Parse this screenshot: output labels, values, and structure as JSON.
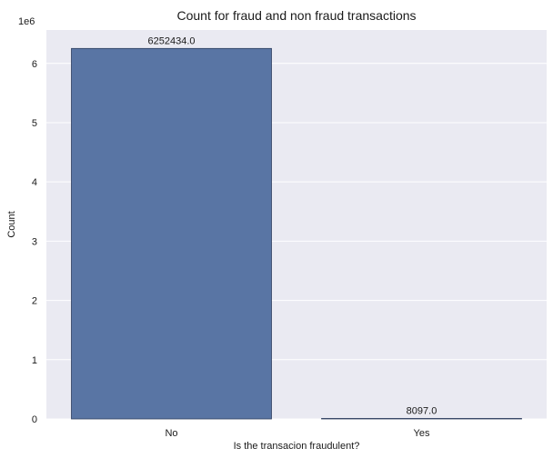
{
  "chart_data": {
    "type": "bar",
    "title": "Count for fraud and non fraud transactions",
    "xlabel": "Is the transacion fraudulent?",
    "ylabel": "Count",
    "categories": [
      "No",
      "Yes"
    ],
    "values": [
      6252434.0,
      8097.0
    ],
    "data_labels": [
      "6252434.0",
      "8097.0"
    ],
    "y_offset_text": "1e6",
    "yticks": [
      0,
      1000000,
      2000000,
      3000000,
      4000000,
      5000000,
      6000000
    ],
    "ytick_labels": [
      "0",
      "1",
      "2",
      "3",
      "4",
      "5",
      "6"
    ],
    "ylim": [
      0,
      6564000
    ],
    "grid": true,
    "colors": {
      "bar": "#5975a4",
      "bar_edge": "#2f3f5f",
      "plot_bg": "#eaeaf2",
      "grid": "#ffffff"
    }
  }
}
